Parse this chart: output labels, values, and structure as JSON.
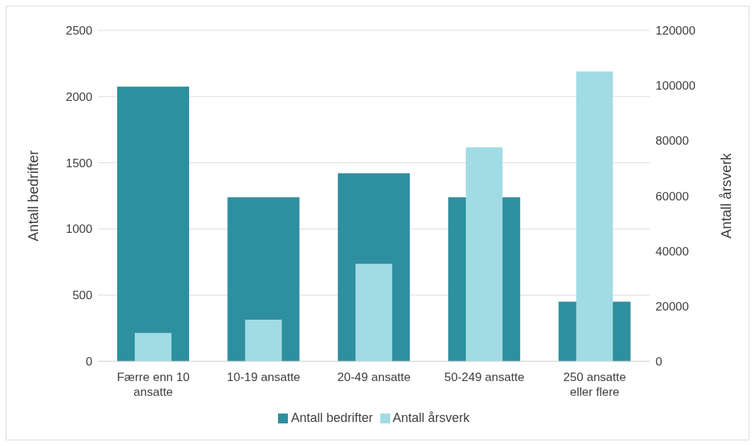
{
  "chart_data": {
    "type": "bar",
    "categories": [
      "Færre enn 10 ansatte",
      "10-19 ansatte",
      "20-49 ansatte",
      "50-249 ansatte",
      "250 ansatte eller flere"
    ],
    "series": [
      {
        "name": "Antall bedrifter",
        "color": "#2e8f9e",
        "values": [
          2075,
          1240,
          1420,
          1240,
          450
        ]
      },
      {
        "name": "Antall årsverk",
        "color": "#a1dbe4",
        "axis": "y2",
        "values": [
          10300,
          15100,
          35400,
          77600,
          105100
        ]
      }
    ],
    "ylabel": "Antall bedrifter",
    "y2label": "Antall årsverk",
    "ylim": [
      0,
      2500
    ],
    "yticks": [
      0,
      500,
      1000,
      1500,
      2000,
      2500
    ],
    "y2lim": [
      0,
      120000
    ],
    "y2ticks": [
      0,
      20000,
      40000,
      60000,
      80000,
      100000,
      120000
    ],
    "grid": "y",
    "legend": "bottom"
  }
}
